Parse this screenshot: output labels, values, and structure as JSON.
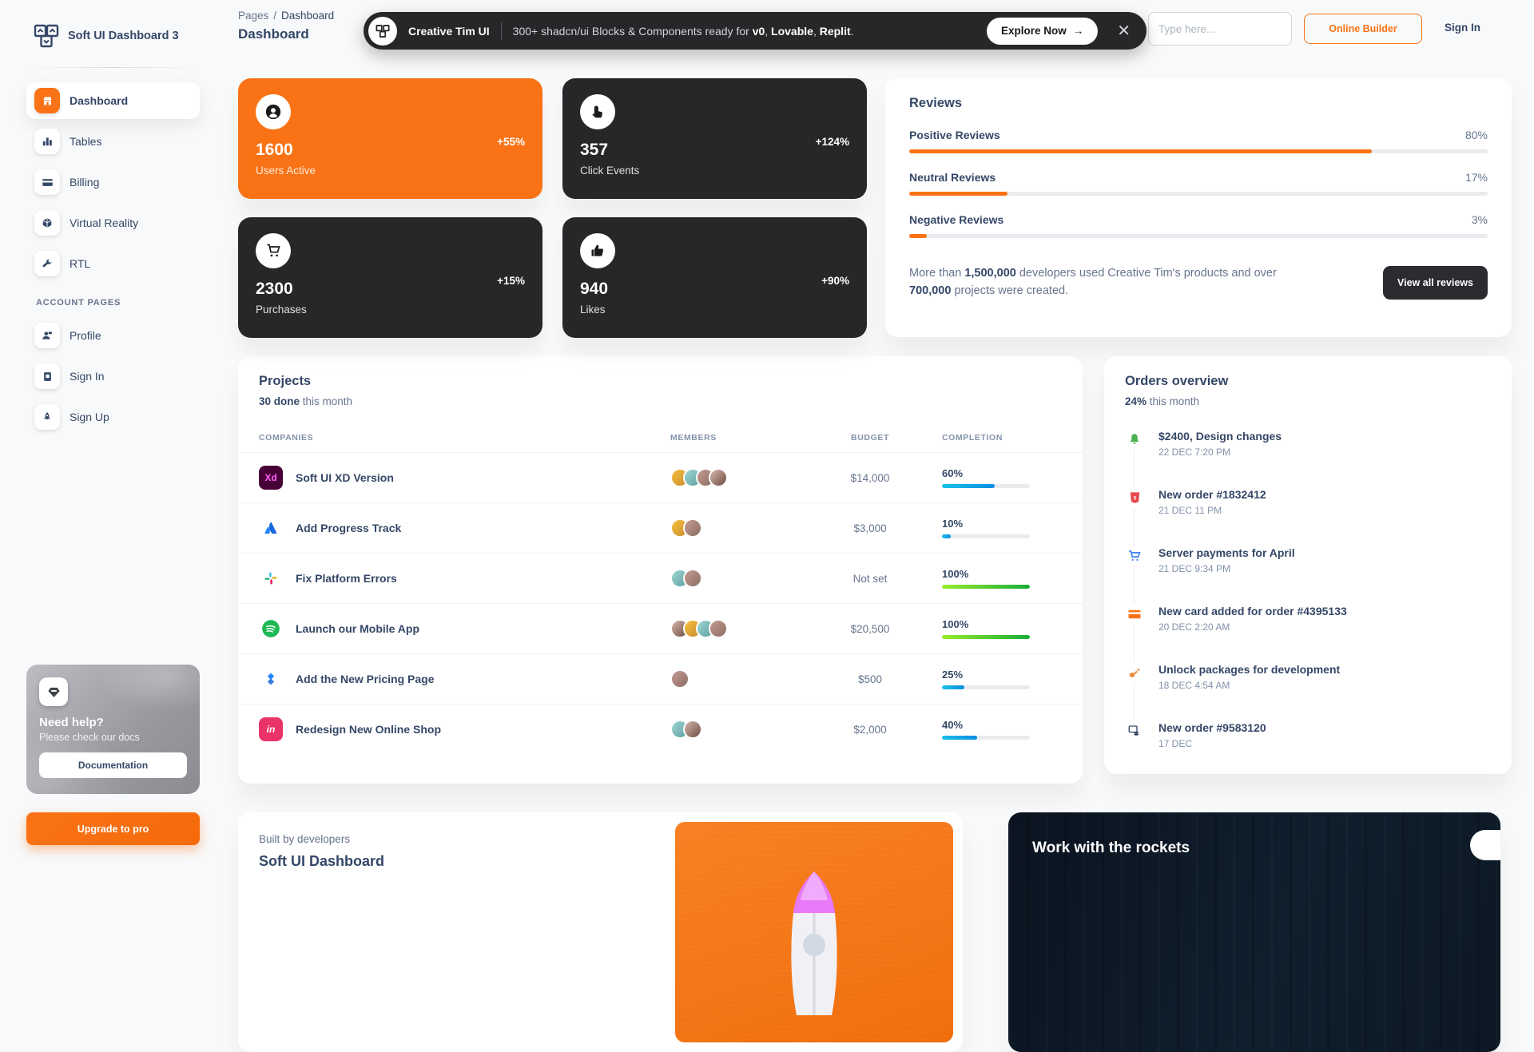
{
  "app": {
    "brand": "Soft UI Dashboard 3"
  },
  "colors": {
    "accent_orange": "#f97316",
    "dark_card": "#27272a",
    "progress_blue": "#17c1e8",
    "progress_blue_end": "#0d8de3",
    "progress_green": "#98ec2d",
    "progress_green_end": "#17ad37",
    "review_bar": "#f97316"
  },
  "sidebar": {
    "items": [
      {
        "label": "Dashboard",
        "icon": "store-icon",
        "active": true
      },
      {
        "label": "Tables",
        "icon": "chart-bars-icon",
        "active": false
      },
      {
        "label": "Billing",
        "icon": "credit-card-icon",
        "active": false
      },
      {
        "label": "Virtual Reality",
        "icon": "cube-icon",
        "active": false
      },
      {
        "label": "RTL",
        "icon": "wrench-icon",
        "active": false
      }
    ],
    "section_label": "ACCOUNT PAGES",
    "account_items": [
      {
        "label": "Profile",
        "icon": "person-icon"
      },
      {
        "label": "Sign In",
        "icon": "document-icon"
      },
      {
        "label": "Sign Up",
        "icon": "rocket-icon"
      }
    ],
    "help": {
      "title": "Need help?",
      "subtitle": "Please check our docs",
      "button_label": "Documentation",
      "icon": "diamond-icon"
    },
    "upgrade_label": "Upgrade to pro"
  },
  "header": {
    "breadcrumb": {
      "root": "Pages",
      "separator": "/",
      "current": "Dashboard"
    },
    "page_title": "Dashboard",
    "banner": {
      "brand": "Creative Tim UI",
      "message_prefix": "300+ shadcn/ui Blocks & Components ready for ",
      "bold1": "v0",
      "sep1": ", ",
      "bold2": "Lovable",
      "sep2": ", ",
      "bold3": "Replit",
      "suffix": ".",
      "cta_label": "Explore Now",
      "cta_arrow": "→",
      "close_glyph": "✕"
    },
    "search_placeholder": "Type here...",
    "online_builder_label": "Online Builder",
    "sign_in_label": "Sign In"
  },
  "stats": [
    {
      "value": "1600",
      "label": "Users Active",
      "delta": "+55%",
      "icon": "user-circle-icon",
      "variant": "orange"
    },
    {
      "value": "357",
      "label": "Click Events",
      "delta": "+124%",
      "icon": "tap-icon",
      "variant": "dark"
    },
    {
      "value": "2300",
      "label": "Purchases",
      "delta": "+15%",
      "icon": "cart-icon",
      "variant": "dark"
    },
    {
      "value": "940",
      "label": "Likes",
      "delta": "+90%",
      "icon": "thumb-up-icon",
      "variant": "dark"
    }
  ],
  "reviews": {
    "title": "Reviews",
    "items": [
      {
        "label": "Positive Reviews",
        "pct": "80%"
      },
      {
        "label": "Neutral Reviews",
        "pct": "17%"
      },
      {
        "label": "Negative Reviews",
        "pct": "3%"
      }
    ],
    "summary": {
      "t1": "More than ",
      "b1": "1,500,000",
      "t2": " developers used Creative Tim's products and over ",
      "b2": "700,000",
      "t3": " projects were created."
    },
    "button_label": "View all reviews"
  },
  "projects": {
    "title": "Projects",
    "done_bold": "30 done",
    "done_rest": " this month",
    "columns": [
      "COMPANIES",
      "MEMBERS",
      "BUDGET",
      "COMPLETION"
    ],
    "rows": [
      {
        "company": "Soft UI XD Version",
        "icon": "adobe-xd-icon",
        "members": 4,
        "budget": "$14,000",
        "completion": "60%",
        "bar": "blue"
      },
      {
        "company": "Add Progress Track",
        "icon": "atlassian-icon",
        "members": 2,
        "budget": "$3,000",
        "completion": "10%",
        "bar": "blue"
      },
      {
        "company": "Fix Platform Errors",
        "icon": "slack-icon",
        "members": 2,
        "budget": "Not set",
        "completion": "100%",
        "bar": "green"
      },
      {
        "company": "Launch our Mobile App",
        "icon": "spotify-icon",
        "members": 4,
        "budget": "$20,500",
        "completion": "100%",
        "bar": "green"
      },
      {
        "company": "Add the New Pricing Page",
        "icon": "jira-icon",
        "members": 1,
        "budget": "$500",
        "completion": "25%",
        "bar": "blue"
      },
      {
        "company": "Redesign New Online Shop",
        "icon": "invision-icon",
        "members": 2,
        "budget": "$2,000",
        "completion": "40%",
        "bar": "blue"
      }
    ]
  },
  "orders": {
    "title": "Orders overview",
    "sub_bold": "24%",
    "sub_rest": " this month",
    "items": [
      {
        "title": "$2400, Design changes",
        "date": "22 DEC 7:20 PM",
        "icon": "bell-icon",
        "color": "#4caf50"
      },
      {
        "title": "New order #1832412",
        "date": "21 DEC 11 PM",
        "icon": "html5-icon",
        "color": "#e5484d"
      },
      {
        "title": "Server payments for April",
        "date": "21 DEC 9:34 PM",
        "icon": "cart-icon",
        "color": "#3b82f6"
      },
      {
        "title": "New card added for order #4395133",
        "date": "20 DEC 2:20 AM",
        "icon": "credit-card-icon",
        "color": "#f97316"
      },
      {
        "title": "Unlock packages for development",
        "date": "18 DEC 4:54 AM",
        "icon": "key-icon",
        "color": "#ed8936"
      },
      {
        "title": "New order #9583120",
        "date": "17 DEC",
        "icon": "payments-icon",
        "color": "#344767"
      }
    ]
  },
  "footer_cards": {
    "built": {
      "eyebrow": "Built by developers",
      "title": "Soft UI Dashboard"
    },
    "rockets": {
      "title": "Work with the rockets"
    }
  }
}
